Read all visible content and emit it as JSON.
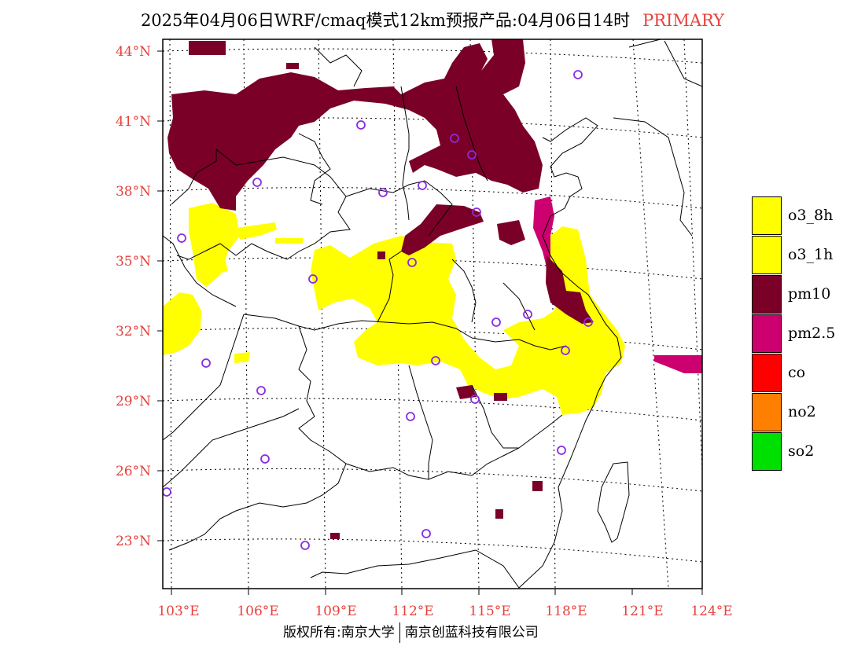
{
  "header": {
    "title": "2025年04月06日WRF/cmaq模式12km预报产品:04月06日14时",
    "tag": "PRIMARY"
  },
  "axes": {
    "lat_labels": [
      "44°N",
      "41°N",
      "38°N",
      "35°N",
      "32°N",
      "29°N",
      "26°N",
      "23°N"
    ],
    "lon_labels": [
      "103°E",
      "106°E",
      "109°E",
      "112°E",
      "115°E",
      "118°E",
      "121°E",
      "124°E"
    ]
  },
  "legend": [
    {
      "label": "o3_8h",
      "color": "#ffff00"
    },
    {
      "label": "o3_1h",
      "color": "#ffff00"
    },
    {
      "label": "pm10",
      "color": "#7a0028"
    },
    {
      "label": "pm2.5",
      "color": "#cc006e"
    },
    {
      "label": "co",
      "color": "#ff0000"
    },
    {
      "label": "no2",
      "color": "#ff8000"
    },
    {
      "label": "so2",
      "color": "#00e000"
    }
  ],
  "footer": {
    "left": "版权所有:南京大学",
    "right": "南京创蓝科技有限公司"
  }
}
